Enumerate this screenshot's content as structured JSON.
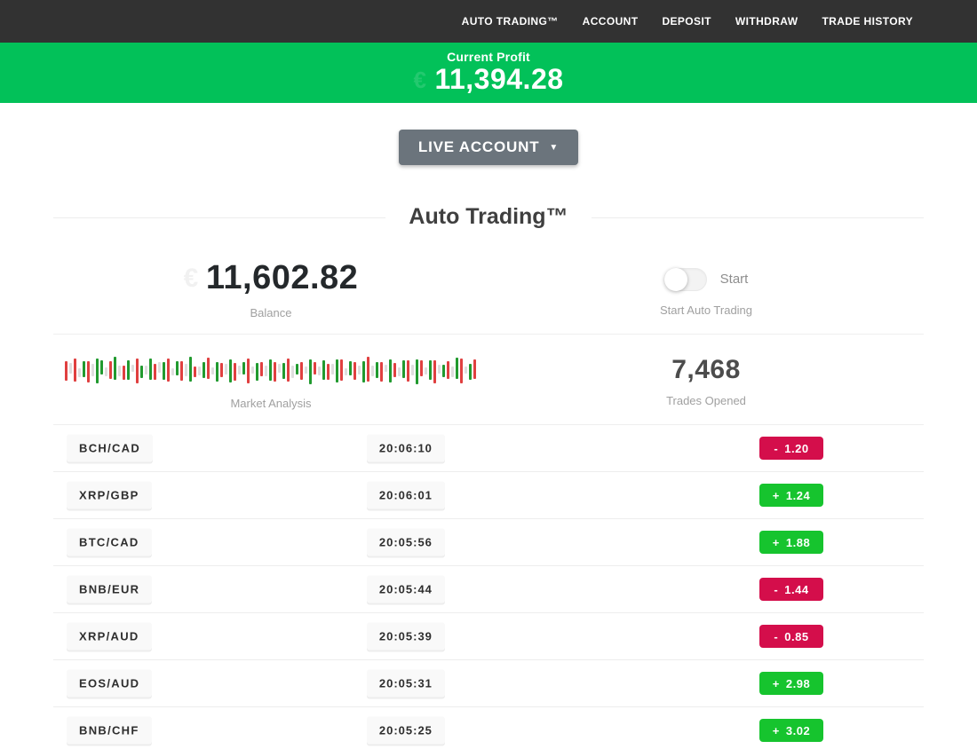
{
  "nav": {
    "items": [
      {
        "id": "auto-trading",
        "label": "AUTO TRADING™"
      },
      {
        "id": "account",
        "label": "ACCOUNT"
      },
      {
        "id": "deposit",
        "label": "DEPOSIT"
      },
      {
        "id": "withdraw",
        "label": "WITHDRAW"
      },
      {
        "id": "trade-history",
        "label": "TRADE HISTORY"
      }
    ]
  },
  "profit_banner": {
    "label": "Current Profit",
    "amount": "11,394.28",
    "currency_watermark": "€"
  },
  "account_selector": {
    "label": "LIVE ACCOUNT",
    "caret": "▼"
  },
  "section": {
    "title": "Auto Trading™"
  },
  "stats": {
    "balance": {
      "value": "11,602.82",
      "label": "Balance",
      "currency_watermark": "€"
    },
    "auto_trading": {
      "toggle_label": "Start",
      "label": "Start Auto Trading",
      "toggle_on": false
    },
    "market_analysis": {
      "label": "Market Analysis"
    },
    "trades_opened": {
      "value": "7,468",
      "label": "Trades Opened"
    }
  },
  "trades": {
    "rows": [
      {
        "pair": "BCH/CAD",
        "time": "20:06:10",
        "sign": "-",
        "value": "1.20",
        "result": "loss"
      },
      {
        "pair": "XRP/GBP",
        "time": "20:06:01",
        "sign": "+",
        "value": "1.24",
        "result": "win"
      },
      {
        "pair": "BTC/CAD",
        "time": "20:05:56",
        "sign": "+",
        "value": "1.88",
        "result": "win"
      },
      {
        "pair": "BNB/EUR",
        "time": "20:05:44",
        "sign": "-",
        "value": "1.44",
        "result": "loss"
      },
      {
        "pair": "XRP/AUD",
        "time": "20:05:39",
        "sign": "-",
        "value": "0.85",
        "result": "loss"
      },
      {
        "pair": "EOS/AUD",
        "time": "20:05:31",
        "sign": "+",
        "value": "2.98",
        "result": "win"
      },
      {
        "pair": "BNB/CHF",
        "time": "20:05:25",
        "sign": "+",
        "value": "3.02",
        "result": "win"
      }
    ]
  },
  "colors": {
    "nav_bg": "#323232",
    "banner_green": "#02c159",
    "win_green": "#16c42e",
    "loss_red": "#d40e4b",
    "bar_red": "#e04040",
    "bar_green": "#219a2f",
    "bar_neutral": "#dedede"
  },
  "chart_data": {
    "type": "bar",
    "title": "Market Analysis",
    "note": "decorative ticker strip; triples are [color r|g|n, height px, vertical offset px]",
    "bars": [
      [
        "r",
        22,
        1
      ],
      [
        "n",
        12,
        -2
      ],
      [
        "r",
        26,
        0
      ],
      [
        "n",
        10,
        3
      ],
      [
        "g",
        18,
        -1
      ],
      [
        "r",
        24,
        2
      ],
      [
        "n",
        14,
        0
      ],
      [
        "g",
        28,
        1
      ],
      [
        "g",
        16,
        -3
      ],
      [
        "n",
        10,
        2
      ],
      [
        "r",
        20,
        0
      ],
      [
        "g",
        26,
        -2
      ],
      [
        "n",
        12,
        1
      ],
      [
        "r",
        16,
        3
      ],
      [
        "g",
        22,
        0
      ],
      [
        "n",
        8,
        -2
      ],
      [
        "r",
        28,
        1
      ],
      [
        "g",
        14,
        2
      ],
      [
        "n",
        10,
        0
      ],
      [
        "g",
        24,
        -1
      ],
      [
        "r",
        18,
        2
      ],
      [
        "n",
        12,
        -3
      ],
      [
        "g",
        20,
        1
      ],
      [
        "r",
        26,
        0
      ],
      [
        "n",
        8,
        2
      ],
      [
        "g",
        16,
        -2
      ],
      [
        "r",
        22,
        1
      ],
      [
        "n",
        14,
        0
      ],
      [
        "g",
        28,
        -1
      ],
      [
        "r",
        12,
        2
      ],
      [
        "n",
        10,
        1
      ],
      [
        "g",
        18,
        0
      ],
      [
        "r",
        24,
        -2
      ],
      [
        "n",
        8,
        1
      ],
      [
        "g",
        22,
        2
      ],
      [
        "r",
        16,
        0
      ],
      [
        "n",
        12,
        -1
      ],
      [
        "g",
        26,
        1
      ],
      [
        "r",
        20,
        2
      ],
      [
        "n",
        10,
        0
      ],
      [
        "g",
        14,
        -2
      ],
      [
        "r",
        28,
        1
      ],
      [
        "n",
        8,
        0
      ],
      [
        "g",
        20,
        2
      ],
      [
        "r",
        16,
        -1
      ],
      [
        "n",
        12,
        1
      ],
      [
        "g",
        24,
        0
      ],
      [
        "r",
        22,
        2
      ],
      [
        "n",
        10,
        -2
      ],
      [
        "g",
        18,
        1
      ],
      [
        "r",
        26,
        0
      ],
      [
        "n",
        14,
        2
      ],
      [
        "g",
        12,
        -1
      ],
      [
        "r",
        20,
        1
      ],
      [
        "n",
        8,
        0
      ],
      [
        "g",
        28,
        2
      ],
      [
        "r",
        14,
        -2
      ],
      [
        "n",
        10,
        1
      ],
      [
        "g",
        22,
        0
      ],
      [
        "r",
        18,
        2
      ],
      [
        "n",
        12,
        -1
      ],
      [
        "g",
        26,
        1
      ],
      [
        "r",
        24,
        0
      ],
      [
        "n",
        8,
        2
      ],
      [
        "g",
        16,
        -2
      ],
      [
        "r",
        20,
        1
      ],
      [
        "n",
        10,
        0
      ],
      [
        "g",
        24,
        2
      ],
      [
        "r",
        28,
        -1
      ],
      [
        "n",
        12,
        1
      ],
      [
        "g",
        18,
        0
      ],
      [
        "r",
        22,
        2
      ],
      [
        "n",
        8,
        -2
      ],
      [
        "g",
        26,
        1
      ],
      [
        "r",
        16,
        0
      ],
      [
        "n",
        10,
        2
      ],
      [
        "g",
        20,
        -1
      ],
      [
        "r",
        24,
        1
      ],
      [
        "n",
        12,
        0
      ],
      [
        "g",
        28,
        2
      ],
      [
        "r",
        18,
        -2
      ],
      [
        "n",
        8,
        1
      ],
      [
        "g",
        22,
        0
      ],
      [
        "r",
        26,
        2
      ],
      [
        "n",
        10,
        -1
      ],
      [
        "g",
        14,
        1
      ],
      [
        "r",
        20,
        0
      ],
      [
        "n",
        12,
        2
      ],
      [
        "g",
        24,
        -2
      ],
      [
        "r",
        28,
        1
      ],
      [
        "n",
        8,
        0
      ],
      [
        "g",
        18,
        2
      ],
      [
        "r",
        22,
        -1
      ]
    ]
  }
}
